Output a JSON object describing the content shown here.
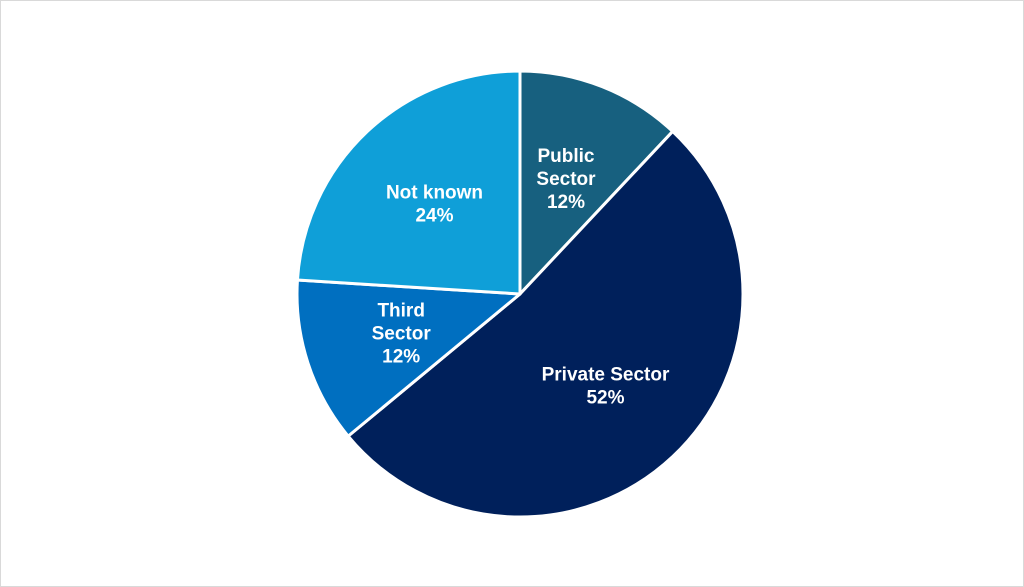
{
  "chart_data": {
    "type": "pie",
    "title": "",
    "slices": [
      {
        "label": [
          "Public",
          "Sector"
        ],
        "value": 12,
        "value_label": "12%",
        "color": "#17607f"
      },
      {
        "label": [
          "Private Sector"
        ],
        "value": 52,
        "value_label": "52%",
        "color": "#00205b"
      },
      {
        "label": [
          "Third",
          "Sector"
        ],
        "value": 12,
        "value_label": "12%",
        "color": "#006fc0"
      },
      {
        "label": [
          "Not known"
        ],
        "value": 24,
        "value_label": "24%",
        "color": "#0f9fd8"
      }
    ],
    "start": "top",
    "direction": "clockwise",
    "slice_border_color": "#ffffff",
    "legend": "none"
  }
}
